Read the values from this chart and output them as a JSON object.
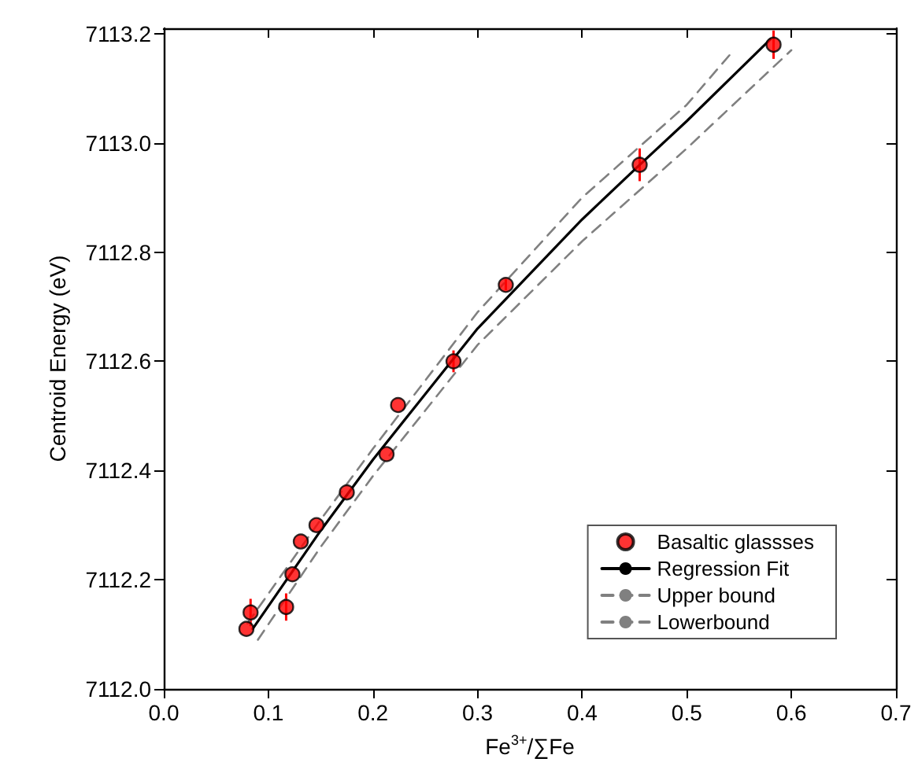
{
  "chart_data": {
    "type": "scatter",
    "xlabel": "Fe$^{3+}$/∑Fe",
    "ylabel": "Centroid Energy (eV)",
    "xlim": [
      0,
      0.7
    ],
    "xticks": [
      {
        "value": 0,
        "label": "0.0"
      },
      0.1,
      0.2,
      0.3,
      0.4,
      0.5,
      0.6,
      0.7
    ],
    "ylim": [
      7112,
      7113.21
    ],
    "yticks": [
      {
        "value": 7112,
        "label": "7112.0"
      },
      7112.2,
      7112.4,
      7112.6,
      7112.8,
      {
        "value": 7113,
        "label": "7113.0"
      },
      7113.2
    ],
    "grid": false,
    "legend": "bottom right",
    "marker": "circle",
    "series": [
      {
        "name": "Basaltic glassses",
        "color": "#ff0000",
        "x": [
          0.079,
          0.083,
          0.117,
          0.123,
          0.131,
          0.146,
          0.175,
          0.213,
          0.224,
          0.277,
          0.327,
          0.455,
          0.583
        ],
        "values": [
          7112.11,
          7112.14,
          7112.15,
          7112.21,
          7112.27,
          7112.3,
          7112.36,
          7112.43,
          7112.52,
          7112.6,
          7112.74,
          7112.96,
          7113.18
        ],
        "errors": [
          null,
          0.025,
          0.025,
          null,
          null,
          null,
          null,
          null,
          null,
          0.02,
          0.01,
          0.03,
          0.026
        ]
      },
      {
        "name": "Regression Fit",
        "type": "line",
        "color": "#000000",
        "line_style": "solid",
        "marker": "none",
        "x": [
          0.085,
          0.15,
          0.2,
          0.3,
          0.4,
          0.455,
          0.5,
          0.58
        ],
        "values": [
          7112.11,
          7112.29,
          7112.42,
          7112.66,
          7112.86,
          7112.96,
          7113.04,
          7113.19
        ]
      },
      {
        "name": "Upper bound",
        "type": "line",
        "color": "#808080",
        "line_style": "dashed",
        "marker": "none",
        "x": [
          0.08,
          0.15,
          0.2,
          0.3,
          0.4,
          0.5,
          0.545
        ],
        "values": [
          7112.12,
          7112.31,
          7112.44,
          7112.69,
          7112.9,
          7113.07,
          7113.17
        ]
      },
      {
        "name": "Lowerbound",
        "type": "line",
        "color": "#808080",
        "line_style": "dashed",
        "marker": "none",
        "x": [
          0.09,
          0.15,
          0.2,
          0.3,
          0.4,
          0.5,
          0.6
        ],
        "values": [
          7112.09,
          7112.26,
          7112.39,
          7112.63,
          7112.82,
          7112.99,
          7113.17
        ]
      }
    ]
  }
}
